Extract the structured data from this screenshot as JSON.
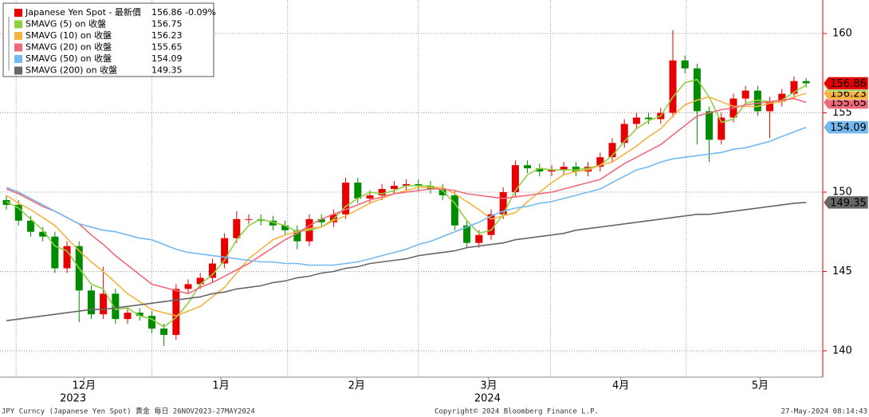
{
  "chart_data": {
    "type": "candlestick",
    "ylim": [
      138.34,
      162.11
    ],
    "yticks": [
      140,
      145,
      150,
      155,
      160
    ],
    "xlim": [
      -0.53,
      67.24
    ],
    "xticks": [
      {
        "value": 6.4,
        "label": "12月"
      },
      {
        "value": 17.7,
        "label": "1月"
      },
      {
        "value": 28.9,
        "label": "2月"
      },
      {
        "value": 39.8,
        "label": "3月"
      },
      {
        "value": 50.7,
        "label": "4月"
      },
      {
        "value": 62.2,
        "label": "5月"
      }
    ],
    "year_labels": [
      {
        "value": 5.5,
        "label": "2023"
      },
      {
        "value": 39.7,
        "label": "2024"
      }
    ],
    "xgrid": [
      0.8,
      12.0,
      23.2,
      34.0,
      44.9,
      56.1
    ],
    "grid": true,
    "candles": {
      "name": "Japanese Yen Spot - 最新價",
      "last": 156.86,
      "change": {
        "value": -0.09,
        "label": "-0.09%"
      },
      "up_color": "#e60000",
      "down_color": "#008c00",
      "open": [
        149.5,
        149.2,
        148.2,
        147.5,
        147.2,
        145.2,
        146.6,
        143.8,
        142.3,
        143.6,
        142.0,
        142.4,
        142.2,
        141.4,
        141.0,
        143.9,
        144.2,
        144.6,
        145.5,
        147.1,
        148.3,
        148.3,
        148.2,
        147.9,
        147.6,
        146.9,
        148.3,
        148.1,
        148.6,
        150.6,
        149.6,
        149.8,
        150.2,
        150.4,
        150.5,
        150.4,
        150.2,
        149.8,
        147.9,
        146.8,
        147.3,
        148.6,
        150.0,
        151.7,
        151.5,
        151.3,
        151.4,
        151.6,
        151.3,
        151.6,
        152.2,
        153.1,
        154.3,
        154.7,
        154.6,
        155.0,
        158.3,
        157.8,
        155.1,
        153.3,
        154.7,
        155.9,
        156.4,
        155.1,
        155.7,
        156.2,
        157.0
      ],
      "high": [
        149.8,
        149.5,
        148.5,
        147.8,
        147.5,
        146.9,
        146.9,
        144.1,
        145.3,
        143.9,
        142.7,
        142.7,
        142.5,
        141.7,
        144.2,
        144.5,
        144.9,
        145.8,
        147.4,
        148.8,
        148.6,
        148.6,
        148.5,
        148.2,
        147.9,
        148.6,
        148.6,
        148.9,
        150.9,
        150.9,
        150.1,
        150.5,
        150.7,
        150.8,
        150.8,
        150.7,
        150.5,
        150.1,
        148.2,
        147.6,
        148.9,
        150.3,
        152.0,
        152.0,
        151.8,
        151.7,
        151.9,
        151.9,
        151.9,
        152.5,
        153.4,
        154.6,
        155.0,
        155.0,
        155.3,
        160.2,
        158.6,
        158.1,
        155.4,
        155.0,
        156.2,
        156.7,
        156.7,
        156.0,
        156.5,
        157.3,
        157.2
      ],
      "low": [
        148.9,
        147.9,
        147.2,
        146.9,
        144.9,
        144.9,
        141.8,
        142.0,
        142.0,
        141.7,
        141.7,
        141.9,
        141.1,
        140.3,
        140.7,
        143.6,
        143.9,
        144.3,
        145.2,
        146.8,
        148.0,
        147.9,
        147.6,
        147.3,
        146.4,
        146.6,
        147.8,
        147.8,
        148.3,
        149.3,
        149.3,
        149.5,
        149.9,
        150.1,
        150.1,
        149.9,
        149.5,
        147.6,
        146.5,
        146.5,
        147.0,
        148.3,
        149.7,
        151.2,
        151.0,
        151.0,
        151.1,
        151.0,
        151.0,
        151.3,
        151.9,
        152.8,
        154.0,
        154.3,
        154.3,
        154.7,
        157.5,
        153.0,
        151.9,
        153.0,
        154.4,
        155.6,
        154.8,
        153.4,
        155.4,
        155.9,
        156.6
      ],
      "close": [
        149.2,
        148.2,
        147.5,
        147.2,
        145.2,
        146.6,
        143.8,
        142.3,
        143.6,
        142.0,
        142.4,
        142.2,
        141.4,
        141.0,
        143.9,
        144.2,
        144.6,
        145.5,
        147.1,
        148.3,
        148.3,
        148.2,
        147.9,
        147.6,
        146.9,
        148.3,
        148.1,
        148.6,
        150.6,
        149.6,
        149.8,
        150.2,
        150.4,
        150.5,
        150.4,
        150.2,
        149.8,
        147.9,
        146.8,
        147.3,
        148.6,
        150.0,
        151.7,
        151.5,
        151.3,
        151.4,
        151.6,
        151.3,
        151.6,
        152.2,
        153.1,
        154.3,
        154.7,
        154.6,
        155.0,
        158.3,
        157.8,
        155.1,
        153.3,
        154.7,
        155.9,
        156.4,
        155.1,
        155.7,
        156.2,
        157.0,
        156.86
      ]
    },
    "series": [
      {
        "name": "SMAVG (5)  on 收盤",
        "color": "#8fd13f",
        "last": 156.75,
        "values": [
          149.4,
          149.0,
          148.3,
          147.6,
          146.6,
          146.3,
          145.2,
          144.2,
          143.9,
          142.6,
          142.7,
          142.2,
          142.0,
          141.5,
          142.1,
          143.0,
          144.2,
          144.8,
          145.7,
          147.0,
          147.9,
          148.3,
          148.1,
          147.9,
          147.5,
          147.6,
          147.8,
          148.3,
          149.1,
          149.6,
          150.0,
          149.9,
          150.1,
          150.4,
          150.4,
          150.4,
          150.1,
          149.3,
          148.2,
          147.4,
          147.6,
          148.6,
          150.1,
          151.1,
          151.5,
          151.4,
          151.4,
          151.4,
          151.5,
          151.7,
          152.3,
          153.2,
          154.0,
          154.5,
          154.8,
          156.0,
          156.9,
          157.1,
          156.0,
          154.4,
          154.6,
          155.6,
          155.8,
          155.7,
          155.8,
          156.3,
          156.75
        ]
      },
      {
        "name": "SMAVG (10)  on 收盤",
        "color": "#f5b342",
        "last": 156.23,
        "values": [
          149.8,
          149.3,
          148.9,
          148.4,
          147.9,
          147.1,
          146.3,
          145.6,
          145.0,
          144.3,
          143.6,
          143.1,
          142.6,
          142.4,
          142.2,
          142.5,
          142.8,
          143.4,
          144.0,
          144.9,
          145.8,
          146.4,
          147.0,
          147.3,
          147.5,
          147.7,
          147.8,
          148.2,
          148.5,
          148.9,
          149.3,
          149.6,
          149.9,
          150.1,
          150.3,
          150.3,
          150.3,
          149.9,
          149.4,
          148.9,
          148.3,
          148.5,
          148.7,
          149.4,
          150.0,
          150.6,
          151.1,
          151.3,
          151.4,
          151.7,
          151.9,
          152.4,
          152.9,
          153.5,
          154.0,
          154.8,
          155.5,
          155.8,
          156.0,
          155.7,
          155.4,
          155.4,
          155.4,
          155.6,
          155.7,
          156.0,
          156.23
        ]
      },
      {
        "name": "SMAVG (20)  on 收盤",
        "color": "#f0697a",
        "last": 155.65,
        "values": [
          150.2,
          149.9,
          149.5,
          149.1,
          148.8,
          148.4,
          148.0,
          147.3,
          146.7,
          146.0,
          145.4,
          144.8,
          144.2,
          144.0,
          143.8,
          143.6,
          144.0,
          144.3,
          144.7,
          145.1,
          145.5,
          146.0,
          146.5,
          147.0,
          147.4,
          147.9,
          148.3,
          148.6,
          148.9,
          149.2,
          149.5,
          149.7,
          149.9,
          150.0,
          150.1,
          150.2,
          150.2,
          150.1,
          149.9,
          149.8,
          149.7,
          149.6,
          149.7,
          149.8,
          149.9,
          150.0,
          150.2,
          150.4,
          150.6,
          150.8,
          151.3,
          151.8,
          152.2,
          152.6,
          153.0,
          153.6,
          154.2,
          154.8,
          155.0,
          155.2,
          155.3,
          155.5,
          155.6,
          155.7,
          155.8,
          155.9,
          155.65
        ]
      },
      {
        "name": "SMAVG (50)  on 收盤",
        "color": "#74b9ef",
        "last": 154.09,
        "values": [
          150.3,
          150.0,
          149.6,
          149.2,
          148.8,
          148.4,
          148.0,
          147.8,
          147.6,
          147.5,
          147.3,
          147.1,
          147.0,
          146.7,
          146.4,
          146.2,
          146.1,
          146.0,
          145.9,
          145.8,
          145.7,
          145.6,
          145.6,
          145.5,
          145.5,
          145.4,
          145.4,
          145.4,
          145.5,
          145.6,
          145.8,
          146.0,
          146.2,
          146.4,
          146.7,
          146.9,
          147.2,
          147.5,
          147.8,
          148.1,
          148.5,
          148.8,
          149.0,
          149.1,
          149.3,
          149.4,
          149.6,
          149.8,
          150.0,
          150.2,
          150.6,
          151.0,
          151.4,
          151.6,
          151.9,
          152.1,
          152.2,
          152.3,
          152.4,
          152.5,
          152.7,
          152.8,
          153.0,
          153.2,
          153.5,
          153.8,
          154.09
        ]
      },
      {
        "name": "SMAVG (200)  on 收盤",
        "color": "#676767",
        "last": 149.35,
        "values": [
          141.9,
          142.0,
          142.1,
          142.2,
          142.3,
          142.4,
          142.5,
          142.6,
          142.6,
          142.7,
          142.8,
          142.9,
          143.0,
          143.1,
          143.2,
          143.3,
          143.4,
          143.6,
          143.7,
          143.9,
          144.0,
          144.1,
          144.3,
          144.4,
          144.6,
          144.7,
          144.9,
          145.0,
          145.2,
          145.3,
          145.5,
          145.6,
          145.7,
          145.8,
          146.0,
          146.1,
          146.2,
          146.3,
          146.5,
          146.6,
          146.7,
          146.8,
          147.0,
          147.1,
          147.2,
          147.3,
          147.4,
          147.6,
          147.7,
          147.8,
          147.9,
          148.0,
          148.1,
          148.2,
          148.3,
          148.4,
          148.5,
          148.6,
          148.6,
          148.7,
          148.8,
          148.9,
          149.0,
          149.1,
          149.2,
          149.3,
          149.35
        ]
      }
    ],
    "footer": {
      "left": "JPY Curncy (Japanese Yen Spot) 貴金  毎日 26NOV2023-27MAY2024",
      "center": "Copyright© 2024 Bloomberg Finance L.P.",
      "right": "27-May-2024 08:14:43"
    }
  }
}
